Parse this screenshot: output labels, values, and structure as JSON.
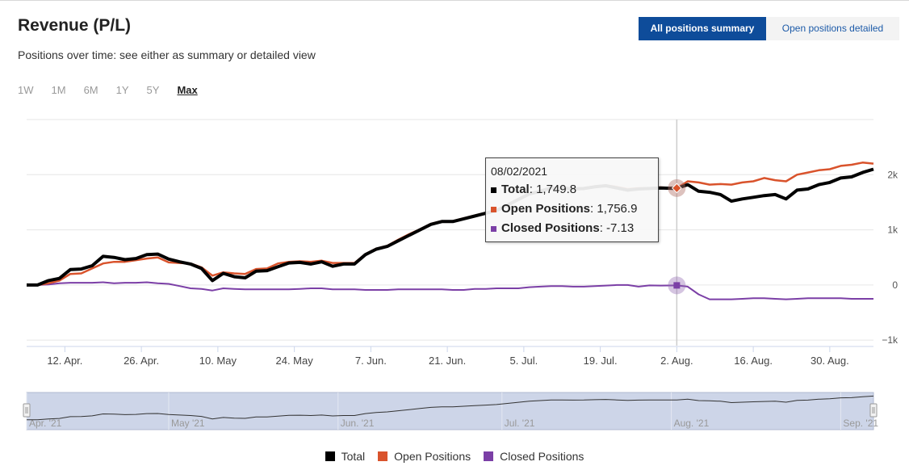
{
  "header": {
    "title": "Revenue (P/L)",
    "subtitle": "Positions over time: see either as summary or detailed view",
    "view_summary": "All positions summary",
    "view_detailed": "Open positions detailed"
  },
  "ranges": [
    "1W",
    "1M",
    "6M",
    "1Y",
    "5Y",
    "Max"
  ],
  "selected_range": "Max",
  "tooltip": {
    "date": "08/02/2021",
    "rows": [
      {
        "name": "Total",
        "value": "1,749.8"
      },
      {
        "name": "Open Positions",
        "value": "1,756.9"
      },
      {
        "name": "Closed Positions",
        "value": "-7.13"
      }
    ]
  },
  "navigator": {
    "labels": [
      "Apr. '21",
      "May '21",
      "Jun. '21",
      "Jul. '21",
      "Aug. '21",
      "Sep. '21"
    ]
  },
  "chart_data": {
    "type": "line",
    "x": [
      "2021-04-05",
      "2021-04-07",
      "2021-04-09",
      "2021-04-11",
      "2021-04-13",
      "2021-04-15",
      "2021-04-17",
      "2021-04-19",
      "2021-04-21",
      "2021-04-23",
      "2021-04-25",
      "2021-04-27",
      "2021-04-29",
      "2021-05-01",
      "2021-05-03",
      "2021-05-05",
      "2021-05-07",
      "2021-05-09",
      "2021-05-11",
      "2021-05-13",
      "2021-05-15",
      "2021-05-17",
      "2021-05-19",
      "2021-05-21",
      "2021-05-23",
      "2021-05-25",
      "2021-05-27",
      "2021-05-29",
      "2021-05-31",
      "2021-06-02",
      "2021-06-04",
      "2021-06-06",
      "2021-06-08",
      "2021-06-10",
      "2021-06-12",
      "2021-06-14",
      "2021-06-16",
      "2021-06-18",
      "2021-06-20",
      "2021-06-22",
      "2021-06-24",
      "2021-06-26",
      "2021-06-28",
      "2021-06-30",
      "2021-07-02",
      "2021-07-04",
      "2021-07-06",
      "2021-07-08",
      "2021-07-10",
      "2021-07-12",
      "2021-07-14",
      "2021-07-16",
      "2021-07-18",
      "2021-07-20",
      "2021-07-22",
      "2021-07-24",
      "2021-07-26",
      "2021-07-28",
      "2021-07-30",
      "2021-08-02",
      "2021-08-04",
      "2021-08-06",
      "2021-08-08",
      "2021-08-10",
      "2021-08-12",
      "2021-08-14",
      "2021-08-16",
      "2021-08-18",
      "2021-08-20",
      "2021-08-22",
      "2021-08-24",
      "2021-08-26",
      "2021-08-28",
      "2021-08-30",
      "2021-09-01",
      "2021-09-03",
      "2021-09-05",
      "2021-09-07"
    ],
    "series": [
      {
        "name": "Total",
        "color": "#000000",
        "values": [
          0,
          0,
          80,
          120,
          280,
          290,
          350,
          520,
          500,
          460,
          480,
          550,
          560,
          470,
          420,
          380,
          300,
          80,
          210,
          150,
          130,
          250,
          260,
          330,
          400,
          410,
          380,
          420,
          340,
          380,
          380,
          550,
          650,
          700,
          800,
          900,
          1000,
          1100,
          1150,
          1150,
          1200,
          1250,
          1300,
          1350,
          1450,
          1550,
          1650,
          1700,
          1760,
          1760,
          1740,
          1750,
          1780,
          1800,
          1760,
          1720,
          1740,
          1749.8,
          1760,
          1749.8,
          1820,
          1700,
          1680,
          1640,
          1520,
          1560,
          1590,
          1620,
          1640,
          1560,
          1720,
          1740,
          1820,
          1860,
          1940,
          1960,
          2040,
          2100
        ]
      },
      {
        "name": "Open Positions",
        "color": "#d9532c",
        "values": [
          0,
          0,
          30,
          80,
          200,
          210,
          300,
          390,
          420,
          420,
          450,
          480,
          500,
          410,
          400,
          390,
          320,
          170,
          230,
          210,
          200,
          290,
          300,
          390,
          420,
          430,
          420,
          440,
          400,
          400,
          400,
          560,
          660,
          710,
          820,
          920,
          1010,
          1110,
          1160,
          1160,
          1210,
          1260,
          1310,
          1360,
          1460,
          1560,
          1660,
          1710,
          1770,
          1770,
          1750,
          1760,
          1790,
          1810,
          1780,
          1740,
          1756.9,
          1756.9,
          1770,
          1756.9,
          1880,
          1860,
          1820,
          1830,
          1820,
          1860,
          1880,
          1940,
          1900,
          1880,
          2000,
          2040,
          2080,
          2100,
          2160,
          2180,
          2220,
          2200
        ]
      },
      {
        "name": "Closed Positions",
        "color": "#7b3fa6",
        "values": [
          0,
          0,
          10,
          30,
          40,
          40,
          40,
          50,
          30,
          40,
          40,
          50,
          30,
          20,
          -20,
          -60,
          -70,
          -100,
          -60,
          -70,
          -80,
          -80,
          -80,
          -80,
          -80,
          -70,
          -60,
          -60,
          -80,
          -80,
          -80,
          -90,
          -90,
          -90,
          -80,
          -80,
          -80,
          -80,
          -80,
          -90,
          -90,
          -70,
          -70,
          -60,
          -60,
          -60,
          -40,
          -30,
          -20,
          -20,
          -30,
          -30,
          -20,
          -10,
          0,
          0,
          -30,
          -7.13,
          -10,
          -7.13,
          -30,
          -170,
          -260,
          -260,
          -260,
          -250,
          -240,
          -240,
          -250,
          -260,
          -250,
          -240,
          -240,
          -240,
          -240,
          -250,
          -250,
          -250
        ]
      }
    ],
    "y_ticks": [
      "−1k",
      "0",
      "1k",
      "2k"
    ],
    "y_tick_values": [
      -1000,
      0,
      1000,
      2000
    ],
    "ylim": [
      -1100,
      3000
    ],
    "x_tick_labels": [
      "12. Apr.",
      "26. Apr.",
      "10. May",
      "24. May",
      "7. Jun.",
      "21. Jun.",
      "5. Jul.",
      "19. Jul.",
      "2. Aug.",
      "16. Aug.",
      "30. Aug."
    ],
    "x_tick_dates": [
      "2021-04-12",
      "2021-04-26",
      "2021-05-10",
      "2021-05-24",
      "2021-06-07",
      "2021-06-21",
      "2021-07-05",
      "2021-07-19",
      "2021-08-02",
      "2021-08-16",
      "2021-08-30"
    ],
    "crosshair_date": "2021-08-02",
    "grid": true,
    "legend_position": "bottom-center"
  }
}
